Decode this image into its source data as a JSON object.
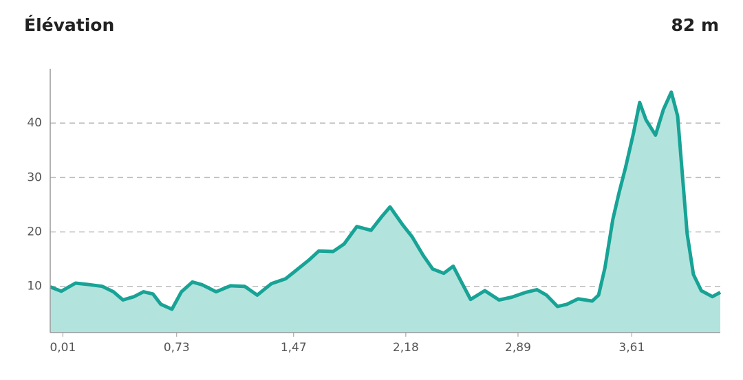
{
  "chart_data": {
    "type": "area",
    "title": "Élévation",
    "elevation": "82 m",
    "x": [
      -0.07,
      0.0,
      0.09,
      0.18,
      0.26,
      0.33,
      0.39,
      0.46,
      0.52,
      0.58,
      0.63,
      0.7,
      0.76,
      0.83,
      0.89,
      0.98,
      1.07,
      1.16,
      1.24,
      1.33,
      1.42,
      1.48,
      1.57,
      1.63,
      1.72,
      1.79,
      1.87,
      1.96,
      2.03,
      2.08,
      2.16,
      2.22,
      2.29,
      2.35,
      2.42,
      2.48,
      2.53,
      2.59,
      2.68,
      2.77,
      2.85,
      2.94,
      3.01,
      3.07,
      3.14,
      3.2,
      3.27,
      3.36,
      3.4,
      3.44,
      3.49,
      3.53,
      3.57,
      3.62,
      3.66,
      3.7,
      3.76,
      3.81,
      3.86,
      3.9,
      3.93,
      3.96,
      4.0,
      4.05,
      4.12,
      4.17
    ],
    "values": [
      9.9,
      9.1,
      10.6,
      10.3,
      10.0,
      9.0,
      7.5,
      8.1,
      9.0,
      8.6,
      6.7,
      5.8,
      9.0,
      10.8,
      10.3,
      9.0,
      10.1,
      10.0,
      8.4,
      10.5,
      11.4,
      12.8,
      14.9,
      16.5,
      16.4,
      17.8,
      21.0,
      20.3,
      22.9,
      24.6,
      21.3,
      19.1,
      15.7,
      13.2,
      12.4,
      13.7,
      10.9,
      7.6,
      9.2,
      7.5,
      8.0,
      8.9,
      9.4,
      8.4,
      6.3,
      6.7,
      7.7,
      7.3,
      8.4,
      13.4,
      22.3,
      27.3,
      31.8,
      38.1,
      43.8,
      40.6,
      37.8,
      42.5,
      45.7,
      41.3,
      30.5,
      19.7,
      12.2,
      9.2,
      8.1,
      8.9
    ],
    "color": "#17a396",
    "fill_color": "#b3e3dd",
    "xlim": [
      -0.07,
      4.17
    ],
    "ylim": [
      1.5,
      50
    ],
    "xticks": [
      {
        "value": 0.01,
        "label": "0,01"
      },
      {
        "value": 0.73,
        "label": "0,73"
      },
      {
        "value": 1.47,
        "label": "1,47"
      },
      {
        "value": 2.18,
        "label": "2,18"
      },
      {
        "value": 2.89,
        "label": "2,89"
      },
      {
        "value": 3.61,
        "label": "3,61"
      }
    ],
    "yticks": [
      10,
      20,
      30,
      40
    ],
    "grid": true
  }
}
